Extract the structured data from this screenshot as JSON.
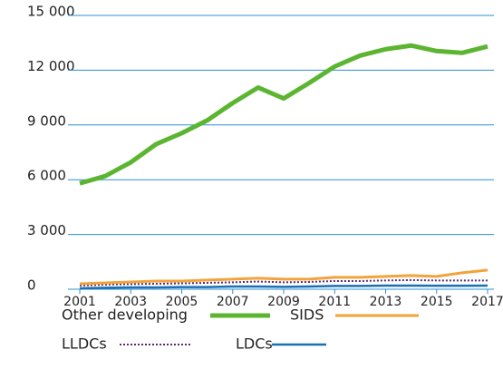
{
  "chart_data": {
    "type": "line",
    "x": [
      2001,
      2002,
      2003,
      2004,
      2005,
      2006,
      2007,
      2008,
      2009,
      2010,
      2011,
      2012,
      2013,
      2014,
      2015,
      2016,
      2017
    ],
    "xlim": [
      2001,
      2017
    ],
    "xticks": [
      2001,
      2003,
      2005,
      2007,
      2009,
      2011,
      2013,
      2015,
      2017
    ],
    "ylim": [
      0,
      15000
    ],
    "yticks": [
      0,
      {
        "value": 3000,
        "label": "3 000"
      },
      {
        "value": 6000,
        "label": "6 000"
      },
      {
        "value": 9000,
        "label": "9 000"
      },
      {
        "value": 12000,
        "label": "12 000"
      },
      {
        "value": 15000,
        "label": "15 000"
      }
    ],
    "grid": true,
    "series": [
      {
        "name": "Other developing",
        "color": "#5cb531",
        "width": 5,
        "dashed": false,
        "values": [
          5800,
          6200,
          6950,
          7950,
          8550,
          9250,
          10200,
          11050,
          10450,
          11300,
          12200,
          12800,
          13150,
          13350,
          13050,
          12950,
          13300
        ]
      },
      {
        "name": "SIDS",
        "color": "#f2a33a",
        "width": 3,
        "dashed": false,
        "values": [
          300,
          350,
          400,
          450,
          450,
          500,
          550,
          600,
          550,
          550,
          650,
          650,
          700,
          750,
          700,
          900,
          1050
        ]
      },
      {
        "name": "LLDCs",
        "color": "#5a2a6e",
        "width": 2,
        "dashed": true,
        "values": [
          200,
          250,
          280,
          300,
          320,
          350,
          380,
          420,
          380,
          400,
          450,
          450,
          480,
          500,
          480,
          480,
          480
        ]
      },
      {
        "name": "LDCs",
        "color": "#1a6fb5",
        "width": 2.5,
        "dashed": false,
        "values": [
          50,
          80,
          100,
          100,
          120,
          120,
          150,
          150,
          130,
          150,
          180,
          180,
          200,
          200,
          190,
          190,
          200
        ]
      }
    ]
  }
}
